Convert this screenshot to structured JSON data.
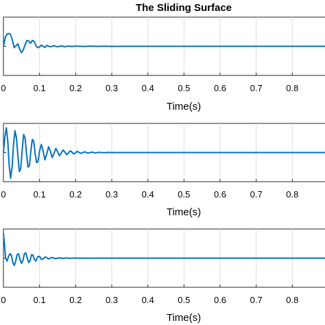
{
  "figure": {
    "title": "The Sliding Surface"
  },
  "colors": {
    "series": "#0072BD",
    "grid": "#dcdcdc",
    "axes": "#262626"
  },
  "chart_data": [
    {
      "type": "line",
      "title": "The Sliding Surface",
      "xlabel": "Time(s)",
      "ylabel": "",
      "xlim": [
        0,
        0.9
      ],
      "xticks": [
        "0",
        "0.1",
        "0.2",
        "0.3",
        "0.4",
        "0.5",
        "0.6",
        "0.7",
        "0.8",
        "0"
      ],
      "grid": true,
      "ylim": [
        -1,
        1
      ],
      "series": [
        {
          "values": [
            [
              0.0,
              0.0
            ],
            [
              0.005,
              0.3
            ],
            [
              0.01,
              0.42
            ],
            [
              0.015,
              0.44
            ],
            [
              0.02,
              0.4
            ],
            [
              0.025,
              0.2
            ],
            [
              0.03,
              -0.05
            ],
            [
              0.035,
              0.02
            ],
            [
              0.04,
              0.08
            ],
            [
              0.045,
              -0.1
            ],
            [
              0.05,
              -0.22
            ],
            [
              0.055,
              -0.12
            ],
            [
              0.06,
              0.05
            ],
            [
              0.065,
              0.2
            ],
            [
              0.07,
              0.18
            ],
            [
              0.075,
              0.1
            ],
            [
              0.08,
              0.2
            ],
            [
              0.085,
              0.17
            ],
            [
              0.09,
              0.02
            ],
            [
              0.095,
              -0.05
            ],
            [
              0.1,
              -0.02
            ],
            [
              0.105,
              0.04
            ],
            [
              0.11,
              0.0
            ],
            [
              0.115,
              -0.04
            ],
            [
              0.12,
              0.03
            ],
            [
              0.13,
              -0.02
            ],
            [
              0.14,
              0.02
            ],
            [
              0.15,
              -0.02
            ],
            [
              0.16,
              0.015
            ],
            [
              0.17,
              -0.015
            ],
            [
              0.18,
              0.01
            ],
            [
              0.19,
              -0.01
            ],
            [
              0.2,
              0.008
            ],
            [
              0.22,
              -0.006
            ],
            [
              0.24,
              0.005
            ],
            [
              0.26,
              -0.004
            ],
            [
              0.28,
              0.003
            ],
            [
              0.3,
              -0.002
            ],
            [
              0.35,
              0.0
            ],
            [
              0.4,
              0.0
            ],
            [
              0.5,
              0.0
            ],
            [
              0.6,
              0.0
            ],
            [
              0.7,
              0.0
            ],
            [
              0.8,
              0.0
            ],
            [
              0.9,
              0.0
            ]
          ]
        }
      ]
    },
    {
      "type": "line",
      "title": "",
      "xlabel": "Time(s)",
      "ylabel": "",
      "xlim": [
        0,
        0.9
      ],
      "xticks": [
        "0",
        "0.1",
        "0.2",
        "0.3",
        "0.4",
        "0.5",
        "0.6",
        "0.7",
        "0.8",
        "0"
      ],
      "grid": true,
      "ylim": [
        -1,
        1
      ],
      "series": [
        {
          "values": [
            [
              0.0,
              0.0
            ],
            [
              0.004,
              0.55
            ],
            [
              0.008,
              0.85
            ],
            [
              0.012,
              0.4
            ],
            [
              0.016,
              -0.45
            ],
            [
              0.02,
              -0.88
            ],
            [
              0.024,
              -0.5
            ],
            [
              0.028,
              0.3
            ],
            [
              0.032,
              0.75
            ],
            [
              0.036,
              0.5
            ],
            [
              0.04,
              -0.1
            ],
            [
              0.044,
              -0.65
            ],
            [
              0.048,
              -0.55
            ],
            [
              0.052,
              0.1
            ],
            [
              0.056,
              0.62
            ],
            [
              0.06,
              0.5
            ],
            [
              0.064,
              -0.05
            ],
            [
              0.068,
              -0.5
            ],
            [
              0.072,
              -0.45
            ],
            [
              0.076,
              0.05
            ],
            [
              0.08,
              0.45
            ],
            [
              0.084,
              0.38
            ],
            [
              0.088,
              -0.05
            ],
            [
              0.092,
              -0.35
            ],
            [
              0.096,
              -0.3
            ],
            [
              0.1,
              0.05
            ],
            [
              0.105,
              0.28
            ],
            [
              0.11,
              0.05
            ],
            [
              0.115,
              -0.25
            ],
            [
              0.12,
              -0.05
            ],
            [
              0.125,
              0.2
            ],
            [
              0.13,
              0.05
            ],
            [
              0.135,
              -0.17
            ],
            [
              0.14,
              -0.03
            ],
            [
              0.145,
              0.14
            ],
            [
              0.15,
              0.03
            ],
            [
              0.155,
              -0.11
            ],
            [
              0.16,
              -0.02
            ],
            [
              0.165,
              0.09
            ],
            [
              0.17,
              0.02
            ],
            [
              0.175,
              -0.07
            ],
            [
              0.18,
              -0.01
            ],
            [
              0.185,
              0.06
            ],
            [
              0.19,
              0.01
            ],
            [
              0.195,
              -0.05
            ],
            [
              0.2,
              0.0
            ],
            [
              0.205,
              0.04
            ],
            [
              0.21,
              0.0
            ],
            [
              0.215,
              -0.03
            ],
            [
              0.22,
              0.0
            ],
            [
              0.225,
              0.025
            ],
            [
              0.23,
              0.0
            ],
            [
              0.235,
              -0.02
            ],
            [
              0.24,
              0.0
            ],
            [
              0.245,
              0.015
            ],
            [
              0.25,
              0.0
            ],
            [
              0.255,
              -0.01
            ],
            [
              0.26,
              0.0
            ],
            [
              0.265,
              0.008
            ],
            [
              0.27,
              0.0
            ],
            [
              0.28,
              -0.005
            ],
            [
              0.29,
              0.003
            ],
            [
              0.3,
              0.0
            ],
            [
              0.35,
              0.0
            ],
            [
              0.4,
              0.0
            ],
            [
              0.5,
              0.0
            ],
            [
              0.6,
              0.0
            ],
            [
              0.7,
              0.0
            ],
            [
              0.8,
              0.0
            ],
            [
              0.9,
              0.0
            ]
          ]
        }
      ]
    },
    {
      "type": "line",
      "title": "",
      "xlabel": "Time(s)",
      "ylabel": "",
      "xlim": [
        0,
        0.9
      ],
      "xticks": [
        "0",
        "0.1",
        "0.2",
        "0.3",
        "0.4",
        "0.5",
        "0.6",
        "0.7",
        "0.8",
        "0"
      ],
      "grid": true,
      "ylim": [
        -1,
        1
      ],
      "series": [
        {
          "values": [
            [
              0.0,
              0.85
            ],
            [
              0.003,
              0.45
            ],
            [
              0.006,
              0.0
            ],
            [
              0.01,
              -0.1
            ],
            [
              0.014,
              0.05
            ],
            [
              0.018,
              0.15
            ],
            [
              0.022,
              0.1
            ],
            [
              0.026,
              -0.15
            ],
            [
              0.03,
              -0.25
            ],
            [
              0.034,
              -0.1
            ],
            [
              0.038,
              0.12
            ],
            [
              0.042,
              0.15
            ],
            [
              0.046,
              -0.05
            ],
            [
              0.05,
              -0.18
            ],
            [
              0.054,
              -0.08
            ],
            [
              0.058,
              0.15
            ],
            [
              0.062,
              0.18
            ],
            [
              0.066,
              0.0
            ],
            [
              0.07,
              -0.15
            ],
            [
              0.074,
              -0.08
            ],
            [
              0.078,
              0.12
            ],
            [
              0.082,
              0.1
            ],
            [
              0.086,
              -0.05
            ],
            [
              0.09,
              -0.1
            ],
            [
              0.095,
              0.05
            ],
            [
              0.1,
              0.06
            ],
            [
              0.105,
              -0.04
            ],
            [
              0.11,
              -0.03
            ],
            [
              0.115,
              0.04
            ],
            [
              0.12,
              0.02
            ],
            [
              0.125,
              -0.03
            ],
            [
              0.13,
              0.0
            ],
            [
              0.135,
              0.025
            ],
            [
              0.14,
              0.0
            ],
            [
              0.145,
              -0.02
            ],
            [
              0.15,
              0.0
            ],
            [
              0.155,
              0.015
            ],
            [
              0.16,
              0.0
            ],
            [
              0.165,
              -0.012
            ],
            [
              0.17,
              0.0
            ],
            [
              0.175,
              0.01
            ],
            [
              0.18,
              0.0
            ],
            [
              0.185,
              -0.008
            ],
            [
              0.19,
              0.0
            ],
            [
              0.2,
              0.006
            ],
            [
              0.21,
              -0.004
            ],
            [
              0.22,
              0.003
            ],
            [
              0.23,
              -0.002
            ],
            [
              0.25,
              0.0
            ],
            [
              0.3,
              0.0
            ],
            [
              0.4,
              0.0
            ],
            [
              0.5,
              0.0
            ],
            [
              0.6,
              0.0
            ],
            [
              0.7,
              0.0
            ],
            [
              0.8,
              0.0
            ],
            [
              0.9,
              0.0
            ]
          ]
        }
      ]
    }
  ]
}
